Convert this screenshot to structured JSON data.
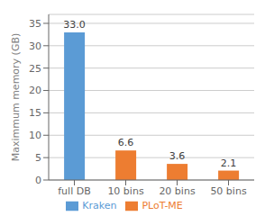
{
  "chart_data": {
    "type": "bar",
    "categories": [
      "full DB",
      "10 bins",
      "20 bins",
      "50 bins"
    ],
    "series": [
      {
        "name": "Kraken",
        "color": "#5B9BD5",
        "values": [
          33.0,
          null,
          null,
          null
        ],
        "value_labels": [
          "33.0",
          null,
          null,
          null
        ]
      },
      {
        "name": "PLoT-ME",
        "color": "#ED7D31",
        "values": [
          null,
          6.6,
          3.6,
          2.1
        ],
        "value_labels": [
          null,
          "6.6",
          "3.6",
          "2.1"
        ]
      }
    ],
    "ylabel": "Maximmum memory (GB)",
    "ylim": [
      0,
      37
    ],
    "yticks": [
      0,
      5,
      10,
      15,
      20,
      25,
      30,
      35
    ],
    "grid": true,
    "legend": "bottom",
    "data_labels": true
  }
}
